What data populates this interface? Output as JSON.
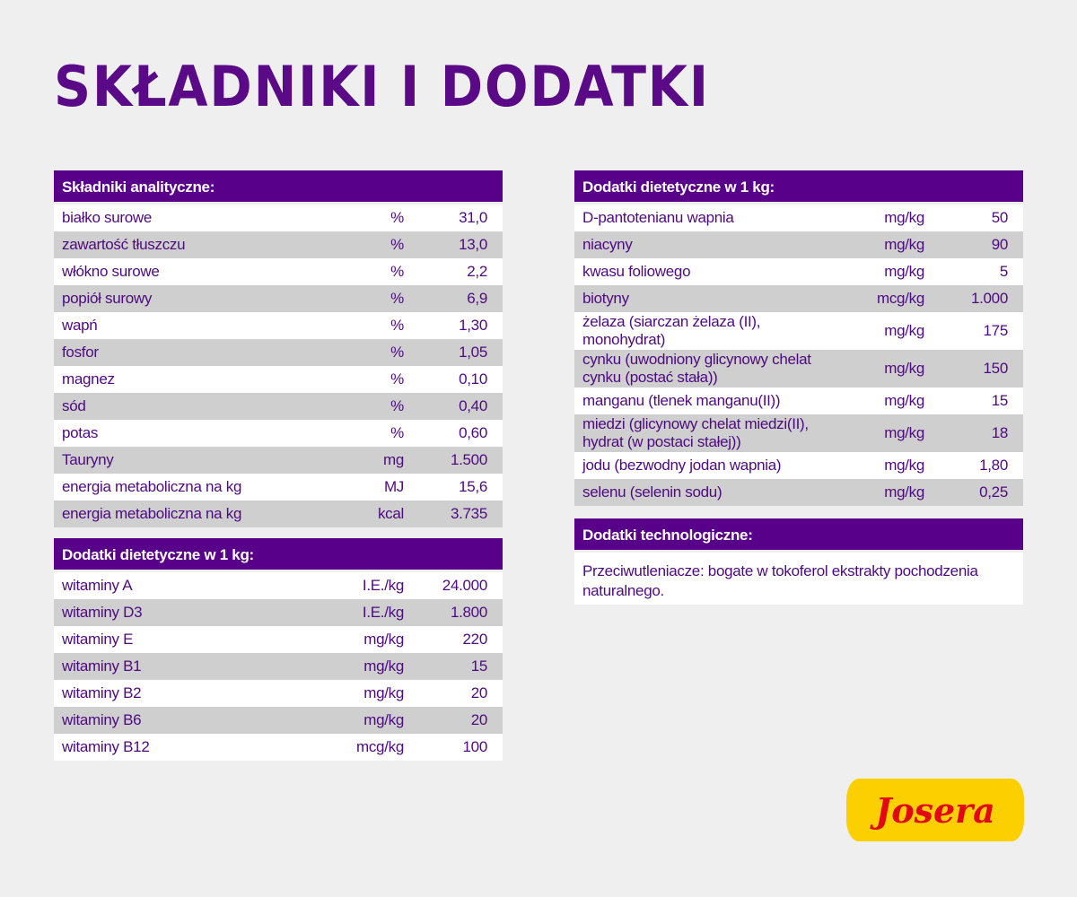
{
  "title": "SKŁADNIKI I DODATKI",
  "analytical": {
    "header": "Składniki analityczne:",
    "rows": [
      [
        "białko surowe",
        "%",
        "31,0"
      ],
      [
        "zawartość tłuszczu",
        "%",
        "13,0"
      ],
      [
        "włókno surowe",
        "%",
        "2,2"
      ],
      [
        "popiół surowy",
        "%",
        "6,9"
      ],
      [
        "wapń",
        "%",
        "1,30"
      ],
      [
        "fosfor",
        "%",
        "1,05"
      ],
      [
        "magnez",
        "%",
        "0,10"
      ],
      [
        "sód",
        "%",
        "0,40"
      ],
      [
        "potas",
        "%",
        "0,60"
      ],
      [
        "Tauryny",
        "mg",
        "1.500"
      ],
      [
        "energia metaboliczna na kg",
        "MJ",
        "15,6"
      ],
      [
        "energia metaboliczna na kg",
        "kcal",
        "3.735"
      ]
    ]
  },
  "vitamins": {
    "header": "Dodatki dietetyczne w 1 kg:",
    "rows": [
      [
        "witaminy A",
        "I.E./kg",
        "24.000"
      ],
      [
        "witaminy D3",
        "I.E./kg",
        "1.800"
      ],
      [
        "witaminy E",
        "mg/kg",
        "220"
      ],
      [
        "witaminy B1",
        "mg/kg",
        "15"
      ],
      [
        "witaminy B2",
        "mg/kg",
        "20"
      ],
      [
        "witaminy B6",
        "mg/kg",
        "20"
      ],
      [
        "witaminy B12",
        "mcg/kg",
        "100"
      ]
    ]
  },
  "minerals": {
    "header": "Dodatki dietetyczne w 1 kg:",
    "rows": [
      [
        "D-pantotenianu wapnia",
        "mg/kg",
        "50"
      ],
      [
        "niacyny",
        "mg/kg",
        "90"
      ],
      [
        "kwasu foliowego",
        "mg/kg",
        "5"
      ],
      [
        "biotyny",
        "mcg/kg",
        "1.000"
      ],
      [
        "żelaza (siarczan żelaza (II), monohydrat)",
        "mg/kg",
        "175"
      ],
      [
        "cynku (uwodniony glicynowy chelat cynku (postać stała))",
        "mg/kg",
        "150"
      ],
      [
        "manganu (tlenek manganu(II))",
        "mg/kg",
        "15"
      ],
      [
        "miedzi (glicynowy chelat miedzi(II), hydrat (w postaci stałej))",
        "mg/kg",
        "18"
      ],
      [
        "jodu (bezwodny jodan wapnia)",
        "mg/kg",
        "1,80"
      ],
      [
        "selenu (selenin sodu)",
        "mg/kg",
        "0,25"
      ]
    ]
  },
  "technological": {
    "header": "Dodatki technologiczne:",
    "text": "Przeciwutleniacze: bogate w tokoferol ekstrakty pochodzenia naturalnego."
  },
  "logo": {
    "text": "Josera",
    "bg": "#fcd000",
    "fg": "#e30613"
  }
}
